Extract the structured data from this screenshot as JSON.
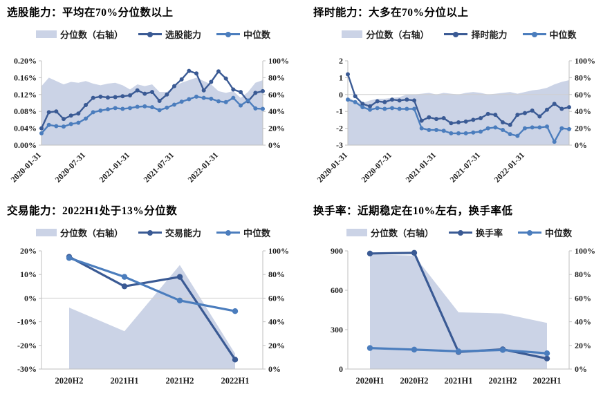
{
  "colors": {
    "area": "#cbd3e6",
    "line_dark": "#3a5a94",
    "line_light": "#4b7dbd",
    "axis": "#bfbfbf",
    "grid": "#cfcfcf",
    "text": "#1f1f1f"
  },
  "chart_data": [
    {
      "id": "stock-selection",
      "type": "area+line combo",
      "title": "选股能力：平均在70%分位数以上",
      "legend": [
        "分位数（右轴）",
        "选股能力",
        "中位数"
      ],
      "x_mode": "edge",
      "x_labels_rotated": true,
      "x_tick_labels": [
        "2020-01-31",
        "2020-07-31",
        "2021-01-31",
        "2021-07-31",
        "2022-01-31"
      ],
      "x_tick_indices": [
        0,
        6,
        12,
        18,
        24
      ],
      "left_axis": {
        "min": 0,
        "max": 0.2,
        "ticks": [
          "0.20%",
          "0.16%",
          "0.12%",
          "0.08%",
          "0.04%",
          "0.00%"
        ]
      },
      "right_axis": {
        "min": 0,
        "max": 100,
        "ticks": [
          "100%",
          "80%",
          "60%",
          "40%",
          "20%",
          "0%"
        ]
      },
      "area_series": {
        "key": "percentile",
        "name": "分位数（右轴）",
        "axis": "right",
        "values": [
          70,
          80,
          76,
          72,
          75,
          74,
          76,
          73,
          71,
          73,
          74,
          71,
          66,
          72,
          70,
          72,
          63,
          63,
          70,
          74,
          77,
          80,
          76,
          72,
          64,
          62,
          64,
          56,
          63,
          74,
          77
        ]
      },
      "line_series": [
        {
          "key": "stock-selection-ability",
          "name": "选股能力",
          "axis": "left",
          "color_key": "line_dark",
          "values": [
            0.04,
            0.078,
            0.08,
            0.062,
            0.07,
            0.075,
            0.095,
            0.112,
            0.115,
            0.113,
            0.114,
            0.116,
            0.118,
            0.13,
            0.122,
            0.126,
            0.105,
            0.12,
            0.14,
            0.156,
            0.176,
            0.17,
            0.13,
            0.15,
            0.175,
            0.158,
            0.132,
            0.126,
            0.104,
            0.124,
            0.128
          ]
        },
        {
          "key": "median",
          "name": "中位数",
          "axis": "left",
          "color_key": "line_light",
          "values": [
            0.028,
            0.048,
            0.045,
            0.044,
            0.05,
            0.053,
            0.063,
            0.078,
            0.082,
            0.085,
            0.088,
            0.086,
            0.088,
            0.091,
            0.092,
            0.09,
            0.083,
            0.089,
            0.096,
            0.103,
            0.109,
            0.115,
            0.112,
            0.11,
            0.104,
            0.102,
            0.112,
            0.094,
            0.106,
            0.087,
            0.086
          ]
        }
      ]
    },
    {
      "id": "market-timing",
      "type": "area+line combo",
      "title": "择时能力：大多在70%分位以上",
      "legend": [
        "分位数（右轴）",
        "择时能力",
        "中位数"
      ],
      "x_mode": "edge",
      "x_labels_rotated": true,
      "x_tick_labels": [
        "2020-01-31",
        "2020-07-31",
        "2021-01-31",
        "2021-07-31",
        "2022-01-31"
      ],
      "x_tick_indices": [
        0,
        6,
        12,
        18,
        24
      ],
      "left_axis": {
        "min": -3,
        "max": 2,
        "ticks": [
          "2",
          "1",
          "0",
          "-1",
          "-2",
          "-3"
        ]
      },
      "right_axis": {
        "min": 0,
        "max": 100,
        "ticks": [
          "100%",
          "80%",
          "60%",
          "40%",
          "20%",
          "0%"
        ]
      },
      "area_series": {
        "key": "percentile",
        "name": "分位数（右轴）",
        "axis": "right",
        "values": [
          57,
          52,
          50,
          53,
          55,
          55,
          56,
          57,
          60,
          60,
          61,
          62,
          60,
          62,
          61,
          60,
          62,
          63,
          62,
          60,
          61,
          62,
          63,
          61,
          63,
          65,
          66,
          68,
          72,
          75,
          77
        ]
      },
      "line_series": [
        {
          "key": "market-timing-ability",
          "name": "择时能力",
          "axis": "left",
          "color_key": "line_dark",
          "values": [
            1.2,
            -0.1,
            -0.55,
            -0.7,
            -0.4,
            -0.45,
            -0.3,
            -0.35,
            -0.3,
            -0.35,
            -1.55,
            -1.35,
            -1.45,
            -1.4,
            -1.7,
            -1.65,
            -1.6,
            -1.5,
            -1.4,
            -1.15,
            -1.2,
            -1.65,
            -1.8,
            -1.2,
            -1.1,
            -0.95,
            -1.3,
            -0.9,
            -0.55,
            -0.85,
            -0.75
          ]
        },
        {
          "key": "median",
          "name": "中位数",
          "axis": "left",
          "color_key": "line_light",
          "values": [
            -0.3,
            -0.45,
            -0.75,
            -0.9,
            -0.8,
            -0.85,
            -0.8,
            -0.85,
            -0.85,
            -0.85,
            -2.0,
            -2.1,
            -2.1,
            -2.15,
            -2.3,
            -2.3,
            -2.3,
            -2.25,
            -2.2,
            -2.0,
            -1.95,
            -2.1,
            -2.35,
            -2.45,
            -2.0,
            -1.95,
            -1.95,
            -1.9,
            -2.8,
            -2.0,
            -2.05
          ]
        }
      ]
    },
    {
      "id": "trading",
      "type": "area+line combo",
      "title": "交易能力：2022H1处于13%分位数",
      "legend": [
        "分位数（右轴）",
        "交易能力",
        "中位数"
      ],
      "x_mode": "center",
      "x_labels_rotated": false,
      "x_tick_labels": [
        "2020H2",
        "2021H1",
        "2021H2",
        "2022H1"
      ],
      "x_tick_indices": [
        0,
        1,
        2,
        3
      ],
      "left_axis": {
        "min": -30,
        "max": 20,
        "ticks": [
          "20%",
          "10%",
          "0%",
          "-10%",
          "-20%",
          "-30%"
        ]
      },
      "right_axis": {
        "min": 0,
        "max": 100,
        "ticks": [
          "100%",
          "80%",
          "60%",
          "40%",
          "20%",
          "0%"
        ]
      },
      "area_series": {
        "key": "percentile",
        "name": "分位数（右轴）",
        "axis": "right",
        "values": [
          52,
          32,
          88,
          13
        ]
      },
      "line_series": [
        {
          "key": "trading-ability",
          "name": "交易能力",
          "axis": "left",
          "color_key": "line_dark",
          "values": [
            17.5,
            5,
            9,
            -26
          ]
        },
        {
          "key": "median",
          "name": "中位数",
          "axis": "left",
          "color_key": "line_light",
          "values": [
            17,
            9,
            -1,
            -5.5
          ]
        }
      ]
    },
    {
      "id": "turnover",
      "type": "area+line combo",
      "title": "换手率：近期稳定在10%左右，换手率低",
      "legend": [
        "分位数（右轴）",
        "换手率",
        "中位数"
      ],
      "x_mode": "center",
      "x_labels_rotated": false,
      "x_tick_labels": [
        "2020H1",
        "2020H2",
        "2021H1",
        "2021H2",
        "2022H1"
      ],
      "x_tick_indices": [
        0,
        1,
        2,
        3,
        4
      ],
      "left_axis": {
        "min": 0,
        "max": 900,
        "ticks": [
          "900",
          "600",
          "300",
          "0"
        ]
      },
      "right_axis": {
        "min": 0,
        "max": 100,
        "ticks": [
          "100%",
          "80%",
          "60%",
          "40%",
          "20%",
          "0%"
        ]
      },
      "area_series": {
        "key": "percentile",
        "name": "分位数（右轴）",
        "axis": "right",
        "values": [
          97,
          96,
          48,
          47,
          39
        ]
      },
      "line_series": [
        {
          "key": "turnover-rate",
          "name": "换手率",
          "axis": "left",
          "color_key": "line_dark",
          "values": [
            880,
            885,
            130,
            150,
            80
          ]
        },
        {
          "key": "median",
          "name": "中位数",
          "axis": "left",
          "color_key": "line_light",
          "values": [
            160,
            148,
            135,
            145,
            120
          ]
        }
      ]
    }
  ]
}
